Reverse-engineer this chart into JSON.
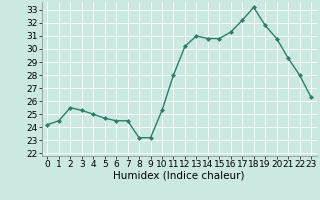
{
  "x": [
    0,
    1,
    2,
    3,
    4,
    5,
    6,
    7,
    8,
    9,
    10,
    11,
    12,
    13,
    14,
    15,
    16,
    17,
    18,
    19,
    20,
    21,
    22,
    23
  ],
  "y": [
    24.2,
    24.5,
    25.5,
    25.3,
    25.0,
    24.7,
    24.5,
    24.5,
    23.2,
    23.2,
    25.3,
    28.0,
    30.2,
    31.0,
    30.8,
    30.8,
    31.3,
    32.2,
    33.2,
    31.8,
    30.8,
    29.3,
    28.0,
    26.3
  ],
  "line_color": "#2d7d6e",
  "marker": "D",
  "markersize": 2.0,
  "linewidth": 1.0,
  "xlabel": "Humidex (Indice chaleur)",
  "ylim": [
    21.8,
    33.6
  ],
  "yticks": [
    22,
    23,
    24,
    25,
    26,
    27,
    28,
    29,
    30,
    31,
    32,
    33
  ],
  "xticks": [
    0,
    1,
    2,
    3,
    4,
    5,
    6,
    7,
    8,
    9,
    10,
    11,
    12,
    13,
    14,
    15,
    16,
    17,
    18,
    19,
    20,
    21,
    22,
    23
  ],
  "bg_color": "#cce9e1",
  "grid_color": "#ffffff",
  "tick_fontsize": 6.5,
  "label_fontsize": 7.5
}
